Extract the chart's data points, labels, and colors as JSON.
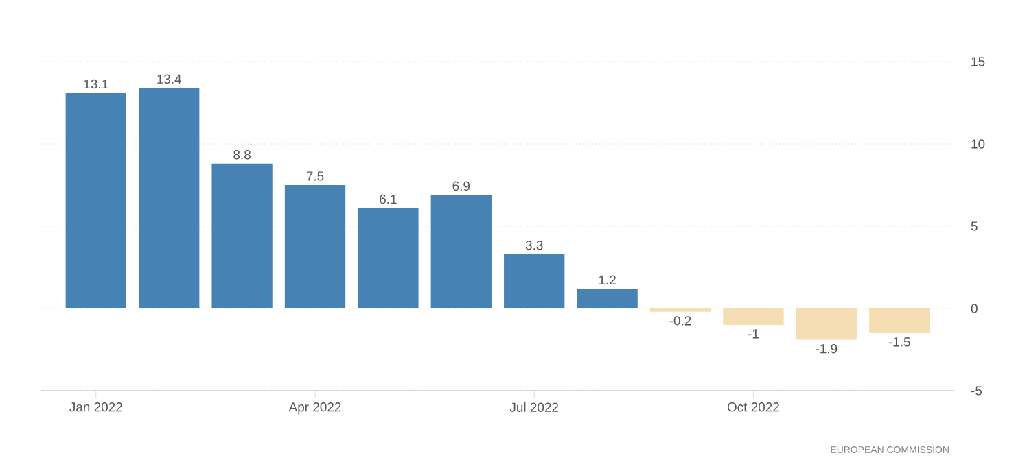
{
  "chart_data": {
    "type": "bar",
    "categories": [
      "Jan 2022",
      null,
      null,
      "Apr 2022",
      null,
      null,
      "Jul 2022",
      null,
      null,
      "Oct 2022",
      null,
      null
    ],
    "values": [
      13.1,
      13.4,
      8.8,
      7.5,
      6.1,
      6.9,
      3.3,
      1.2,
      -0.2,
      -1,
      -1.9,
      -1.5
    ],
    "value_labels": [
      "13.1",
      "13.4",
      "8.8",
      "7.5",
      "6.1",
      "6.9",
      "3.3",
      "1.2",
      "-0.2",
      "-1",
      "-1.9",
      "-1.5"
    ],
    "colors": [
      "#4682b4",
      "#4682b4",
      "#4682b4",
      "#4682b4",
      "#4682b4",
      "#4682b4",
      "#4682b4",
      "#4682b4",
      "#f5deb3",
      "#f5deb3",
      "#f5deb3",
      "#f5deb3"
    ],
    "ylim": [
      -5,
      15
    ],
    "yticks": [
      -5,
      0,
      5,
      10,
      15
    ],
    "grid": "y",
    "annotations": [
      "EUROPEAN COMMISSION"
    ]
  }
}
